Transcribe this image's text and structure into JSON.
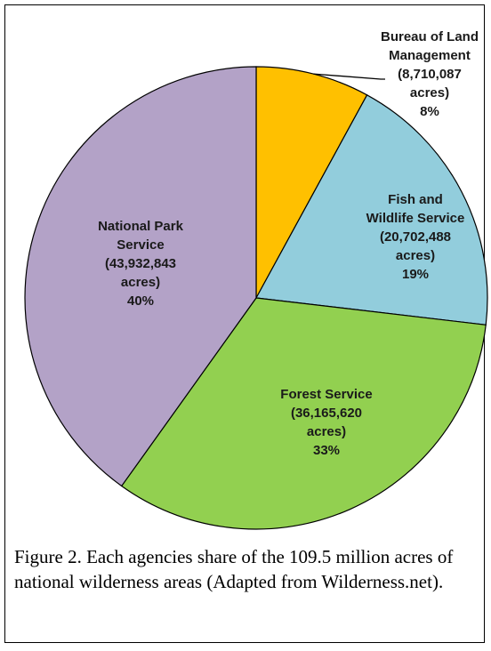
{
  "chart_data": {
    "type": "pie",
    "title": "",
    "start_angle_deg": 0,
    "direction": "clockwise",
    "legend": "none",
    "slices": [
      {
        "label_lines": [
          "Bureau of Land",
          "Management",
          "(8,710,087",
          "acres)",
          "8%"
        ],
        "value": 8710087,
        "percent": 8,
        "color": "#ffc000"
      },
      {
        "label_lines": [
          "Fish and",
          "Wildlife Service",
          "(20,702,488",
          "acres)",
          "19%"
        ],
        "value": 20702488,
        "percent": 19,
        "color": "#92cddc"
      },
      {
        "label_lines": [
          "Forest Service",
          "(36,165,620",
          "acres)",
          "33%"
        ],
        "value": 36165620,
        "percent": 33,
        "color": "#92d050"
      },
      {
        "label_lines": [
          "National Park",
          "Service",
          "(43,932,843",
          "acres)",
          "40%"
        ],
        "value": 43932843,
        "percent": 40,
        "color": "#b3a2c7"
      }
    ]
  },
  "caption": "Figure 2. Each agencies share of the 109.5 million acres of national wilderness areas (Adapted from Wilderness.net)."
}
